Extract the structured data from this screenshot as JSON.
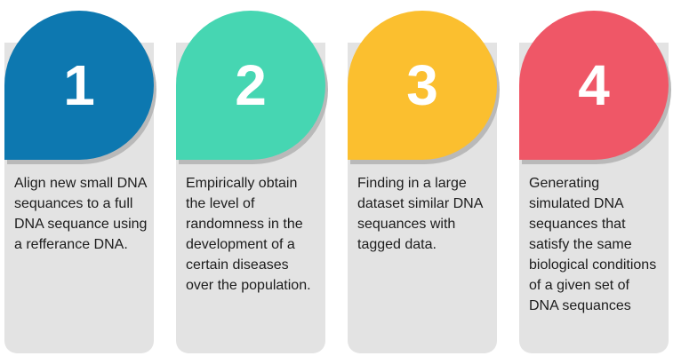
{
  "steps": [
    {
      "number": "1",
      "color": "#0d78b0",
      "text": "Align new small DNA sequances to a full DNA sequance using a refferance DNA."
    },
    {
      "number": "2",
      "color": "#46d6b2",
      "text": "Empirically obtain the level of randomness in the development of a certain diseases over the population."
    },
    {
      "number": "3",
      "color": "#fbbf2f",
      "text": "Finding in a large dataset similar DNA sequances with tagged data."
    },
    {
      "number": "4",
      "color": "#ef5767",
      "text": "Generating simulated DNA sequances that satisfy the same biological conditions of a given set of DNA sequances"
    }
  ]
}
